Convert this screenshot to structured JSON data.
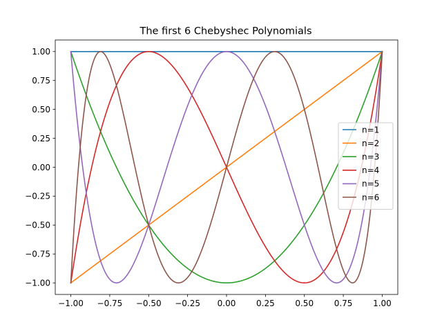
{
  "chart_data": {
    "type": "line",
    "title": "The first 6 Chebyshec Polynomials",
    "xlabel": "",
    "ylabel": "",
    "xlim": [
      -1.1,
      1.1
    ],
    "ylim": [
      -1.1,
      1.1
    ],
    "xticks": [
      -1.0,
      -0.75,
      -0.5,
      -0.25,
      0.0,
      0.25,
      0.5,
      0.75,
      1.0
    ],
    "xtick_labels": [
      "−1.00",
      "−0.75",
      "−0.50",
      "−0.25",
      "0.00",
      "0.25",
      "0.50",
      "0.75",
      "1.00"
    ],
    "yticks": [
      1.0,
      0.75,
      0.5,
      0.25,
      0.0,
      -0.25,
      -0.5,
      -0.75,
      -1.0
    ],
    "ytick_labels": [
      "1.00",
      "0.75",
      "0.50",
      "0.25",
      "0.00",
      "−0.25",
      "−0.50",
      "−0.75",
      "−1.00"
    ],
    "grid": false,
    "legend_position": "center-right",
    "x_domain": [
      -1.0,
      1.0
    ],
    "series": [
      {
        "name": "n=1",
        "degree": 0,
        "color": "#1f77b4"
      },
      {
        "name": "n=2",
        "degree": 1,
        "color": "#ff7f0e"
      },
      {
        "name": "n=3",
        "degree": 2,
        "color": "#2ca02c"
      },
      {
        "name": "n=4",
        "degree": 3,
        "color": "#d62728"
      },
      {
        "name": "n=5",
        "degree": 4,
        "color": "#9467bd"
      },
      {
        "name": "n=6",
        "degree": 5,
        "color": "#8c564b"
      }
    ]
  }
}
